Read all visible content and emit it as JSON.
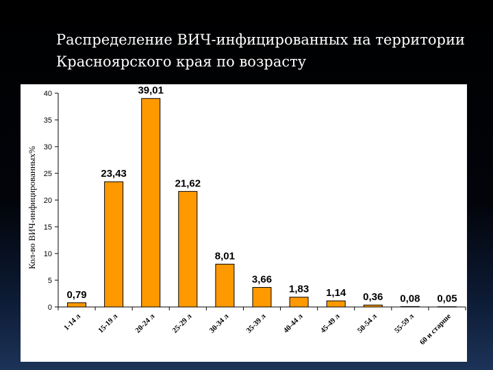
{
  "slide": {
    "title": "Распределение ВИЧ-инфицированных на территории Красноярского края по возрасту"
  },
  "chart_data": {
    "type": "bar",
    "title": "Распределение ВИЧ-инфицированных на территории Красноярского края по возрасту",
    "ylabel": "Кол-во ВИЧ-инфицированных%",
    "xlabel": "",
    "categories": [
      "1-14 л",
      "15-19 л",
      "20-24 л",
      "25-29 л",
      "30-34 л",
      "35-39 л",
      "40-44 л",
      "45-49 л",
      "50-54 л",
      "55-59 л",
      "60 и старше"
    ],
    "values": [
      0.79,
      23.43,
      39.01,
      21.62,
      8.01,
      3.66,
      1.83,
      1.14,
      0.36,
      0.08,
      0.05
    ],
    "value_labels": [
      "0,79",
      "23,43",
      "39,01",
      "21,62",
      "8,01",
      "3,66",
      "1,83",
      "1,14",
      "0,36",
      "0,08",
      "0,05"
    ],
    "ylim": [
      0,
      40
    ],
    "yticks": [
      0,
      5,
      10,
      15,
      20,
      25,
      30,
      35,
      40
    ],
    "bar_color": "#FF9900",
    "grid": false,
    "legend": "none"
  }
}
